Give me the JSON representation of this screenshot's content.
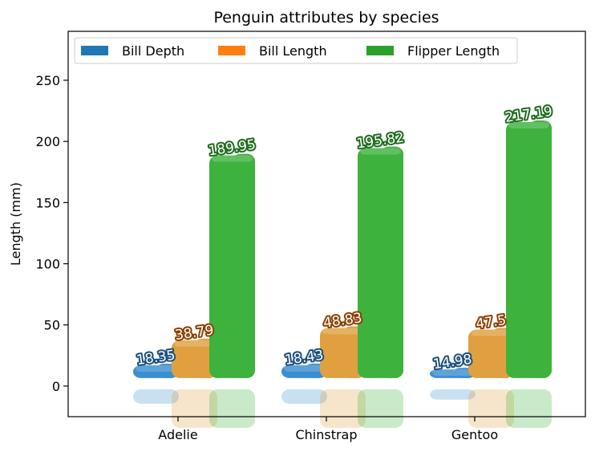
{
  "chart_data": {
    "type": "bar",
    "title": "Penguin attributes by species",
    "xlabel": "",
    "ylabel": "Length (mm)",
    "categories": [
      "Adelie",
      "Chinstrap",
      "Gentoo"
    ],
    "ylim": [
      -25,
      290
    ],
    "yticks": [
      "0",
      "50",
      "100",
      "150",
      "200",
      "250"
    ],
    "legend_position": "top-left",
    "grid": false,
    "series": [
      {
        "name": "Bill Depth",
        "values": [
          18.35,
          18.43,
          14.98
        ],
        "labels": [
          "18.35",
          "18.43",
          "14.98"
        ],
        "color": "#1f77b4"
      },
      {
        "name": "Bill Length",
        "values": [
          38.79,
          48.83,
          47.5
        ],
        "labels": [
          "38.79",
          "48.83",
          "47.5"
        ],
        "color": "#ff7f0e"
      },
      {
        "name": "Flipper Length",
        "values": [
          189.95,
          195.82,
          217.19
        ],
        "labels": [
          "189.95",
          "195.82",
          "217.19"
        ],
        "color": "#2ca02c"
      }
    ],
    "style_colors": {
      "Bill Depth": {
        "face": "#3a8fd0",
        "side": "#2e7ab6",
        "label_stroke": "#1a4f7e"
      },
      "Bill Length": {
        "face": "#e0a040",
        "side": "#d08a2c",
        "label_stroke": "#8b4000"
      },
      "Flipper Length": {
        "face": "#3db23d",
        "side": "#2f9a2f",
        "label_stroke": "#1e6b1e"
      }
    }
  }
}
